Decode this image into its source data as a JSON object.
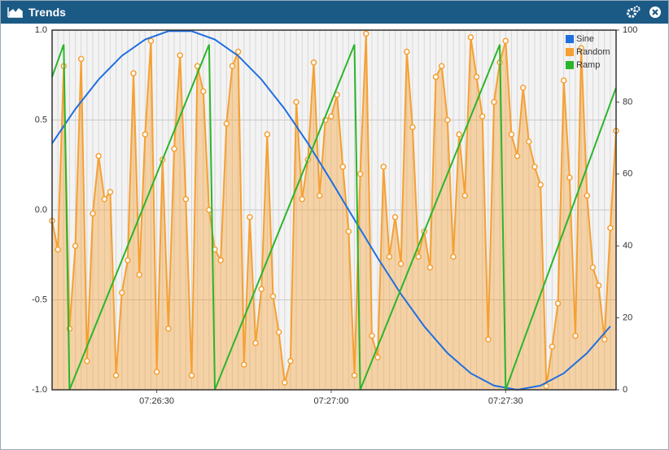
{
  "panel": {
    "title": "Trends"
  },
  "chart_data": {
    "type": "line",
    "x": [
      "07:26:12",
      "07:26:13",
      "07:26:14",
      "07:26:15",
      "07:26:16",
      "07:26:17",
      "07:26:18",
      "07:26:19",
      "07:26:20",
      "07:26:21",
      "07:26:22",
      "07:26:23",
      "07:26:24",
      "07:26:25",
      "07:26:26",
      "07:26:27",
      "07:26:28",
      "07:26:29",
      "07:26:30",
      "07:26:31",
      "07:26:32",
      "07:26:33",
      "07:26:34",
      "07:26:35",
      "07:26:36",
      "07:26:37",
      "07:26:38",
      "07:26:39",
      "07:26:40",
      "07:26:41",
      "07:26:42",
      "07:26:43",
      "07:26:44",
      "07:26:45",
      "07:26:46",
      "07:26:47",
      "07:26:48",
      "07:26:49",
      "07:26:50",
      "07:26:51",
      "07:26:52",
      "07:26:53",
      "07:26:54",
      "07:26:55",
      "07:26:56",
      "07:26:57",
      "07:26:58",
      "07:26:59",
      "07:27:00",
      "07:27:01",
      "07:27:02",
      "07:27:03",
      "07:27:04",
      "07:27:05",
      "07:27:06",
      "07:27:07",
      "07:27:08",
      "07:27:09",
      "07:27:10",
      "07:27:11",
      "07:27:12",
      "07:27:13",
      "07:27:14",
      "07:27:15",
      "07:27:16",
      "07:27:17",
      "07:27:18",
      "07:27:19",
      "07:27:20",
      "07:27:21",
      "07:27:22",
      "07:27:23",
      "07:27:24",
      "07:27:25",
      "07:27:26",
      "07:27:27",
      "07:27:28",
      "07:27:29",
      "07:27:30",
      "07:27:31",
      "07:27:32",
      "07:27:33",
      "07:27:34",
      "07:27:35",
      "07:27:36",
      "07:27:37",
      "07:27:38",
      "07:27:39",
      "07:27:40",
      "07:27:41",
      "07:27:42",
      "07:27:43",
      "07:27:44",
      "07:27:45",
      "07:27:46",
      "07:27:47",
      "07:27:48",
      "07:27:49"
    ],
    "xlim": [
      "07:26:12",
      "07:27:49"
    ],
    "xticks": [
      "07:26:30",
      "07:27:00",
      "07:27:30"
    ],
    "ylim": [
      -1,
      1
    ],
    "yticks": [
      {
        "value": 1,
        "label": "1.0"
      },
      0.5,
      {
        "value": 0,
        "label": "0.0"
      },
      -0.5,
      {
        "value": -1,
        "label": "-1.0"
      }
    ],
    "y2lim": [
      0,
      100
    ],
    "y2ticks": [
      0,
      20,
      40,
      60,
      80,
      100
    ],
    "grid": true,
    "legend": "top-right",
    "series": [
      {
        "name": "Sine",
        "color": "#1f6fe0",
        "axis": "y",
        "x": [
          "07:26:12",
          "07:26:16",
          "07:26:20",
          "07:26:24",
          "07:26:28",
          "07:26:32",
          "07:26:36",
          "07:26:40",
          "07:26:44",
          "07:26:48",
          "07:26:52",
          "07:26:56",
          "07:27:00",
          "07:27:04",
          "07:27:08",
          "07:27:12",
          "07:27:16",
          "07:27:20",
          "07:27:24",
          "07:27:28",
          "07:27:32",
          "07:27:36",
          "07:27:40",
          "07:27:44",
          "07:27:48"
        ],
        "values": [
          0.37,
          0.561,
          0.726,
          0.857,
          0.948,
          0.994,
          0.994,
          0.948,
          0.857,
          0.726,
          0.561,
          0.37,
          0.162,
          -0.054,
          -0.267,
          -0.468,
          -0.647,
          -0.796,
          -0.908,
          -0.977,
          -1.0,
          -0.977,
          -0.908,
          -0.796,
          -0.647
        ]
      },
      {
        "name": "Random",
        "color": "#f5a033",
        "axis": "y2",
        "area": true,
        "values": [
          47,
          39,
          90,
          17,
          40,
          92,
          8,
          49,
          65,
          53,
          55,
          4,
          27,
          36,
          88,
          32,
          71,
          97,
          5,
          64,
          17,
          67,
          93,
          53,
          4,
          90,
          83,
          50,
          39,
          36,
          74,
          90,
          94,
          7,
          48,
          13,
          28,
          71,
          26,
          16,
          2,
          8,
          80,
          53,
          64,
          91,
          54,
          75,
          76,
          82,
          62,
          44,
          4,
          60,
          99,
          15,
          9,
          62,
          37,
          48,
          35,
          94,
          73,
          37,
          44,
          34,
          87,
          90,
          75,
          37,
          71,
          54,
          98,
          87,
          76,
          14,
          80,
          91,
          97,
          71,
          65,
          84,
          69,
          62,
          57,
          1,
          12,
          24,
          86,
          59,
          15,
          95,
          54,
          34,
          29,
          14,
          45,
          72
        ]
      },
      {
        "name": "Ramp",
        "color": "#2bb52b",
        "axis": "y2",
        "x": [
          "07:26:12",
          "07:26:14",
          "07:26:15",
          "07:26:39",
          "07:26:40",
          "07:27:04",
          "07:27:05",
          "07:27:29",
          "07:27:30",
          "07:27:49"
        ],
        "values": [
          87,
          96,
          0,
          96,
          0,
          96,
          0,
          96,
          0,
          84
        ]
      }
    ]
  }
}
